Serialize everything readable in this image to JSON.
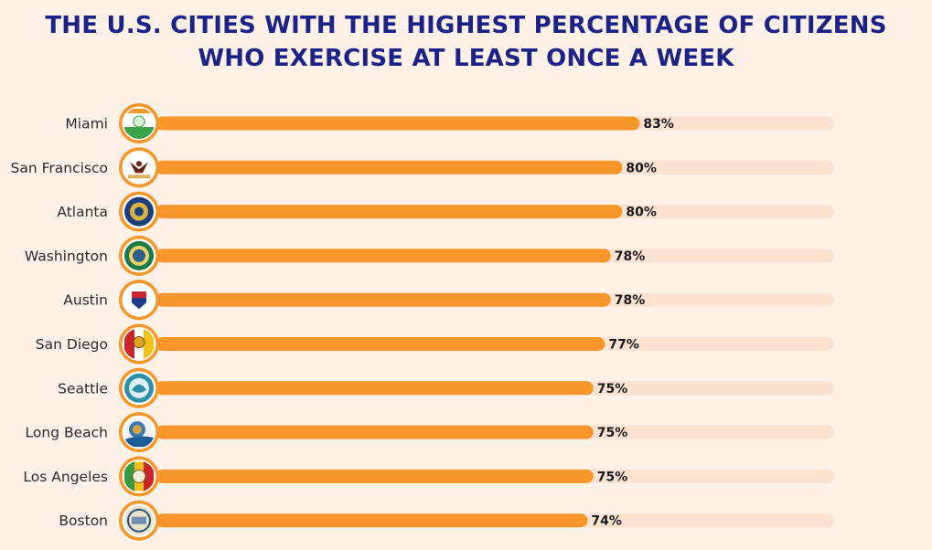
{
  "title": {
    "line1": "THE U.S. CITIES WITH THE HIGHEST PERCENTAGE OF CITIZENS",
    "line2": "WHO EXERCISE AT LEAST ONCE A WEEK"
  },
  "colors": {
    "background": "#fdf1e8",
    "title": "#1c2386",
    "bar": "#f7962a",
    "track": "#fbe2d1",
    "badge_ring": "#f7962a"
  },
  "chart_data": {
    "type": "bar",
    "orientation": "horizontal",
    "categories": [
      "Miami",
      "San Francisco",
      "Atlanta",
      "Washington",
      "Austin",
      "San Diego",
      "Seattle",
      "Long Beach",
      "Los Angeles",
      "Boston"
    ],
    "values": [
      83,
      80,
      80,
      78,
      78,
      77,
      75,
      75,
      75,
      74
    ],
    "value_labels": [
      "83%",
      "80%",
      "80%",
      "78%",
      "78%",
      "77%",
      "75%",
      "75%",
      "75%",
      "74%"
    ],
    "unit": "%",
    "icons": [
      "miami-flag-icon",
      "san-francisco-flag-icon",
      "atlanta-seal-icon",
      "washington-seal-icon",
      "austin-flag-icon",
      "san-diego-flag-icon",
      "seattle-seal-icon",
      "long-beach-seal-icon",
      "los-angeles-flag-icon",
      "boston-seal-icon"
    ],
    "xlabel": "",
    "ylabel": "",
    "grid": false,
    "legend": "none"
  }
}
